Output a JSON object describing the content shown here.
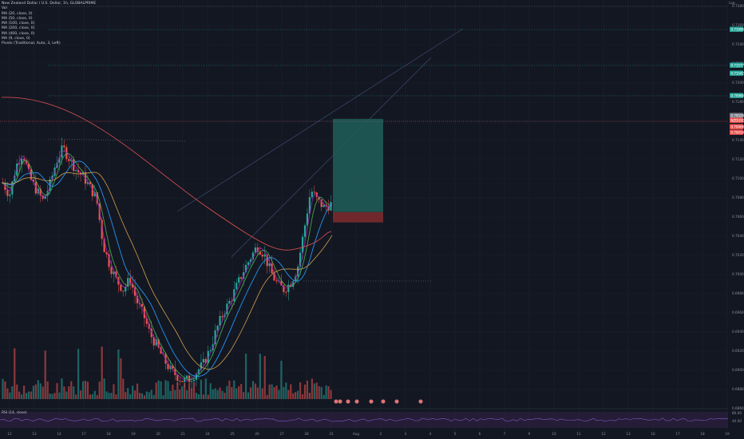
{
  "symbol": {
    "title": "New Zealand Dollar / U.S. Dollar, 1h, GLOBALPRIME",
    "sub": "Vol"
  },
  "indicators": [
    "MA (20, close, 0)",
    "MA (50, close, 0)",
    "MA (100, close, 0)",
    "MA (200, close, 0)",
    "MA (400, close, 0)",
    "MA (9, close, 0)",
    "Pivots (Traditional, Auto, 3, Left)"
  ],
  "rsi_label": "RSI (14, close)",
  "log_toggle": "Log",
  "price_axis": [
    "0.72800",
    "0.72600",
    "0.72400",
    "0.72200",
    "0.72000",
    "0.71800",
    "0.71600",
    "0.71400",
    "0.71200",
    "0.71000",
    "0.70800",
    "0.70600",
    "0.70400",
    "0.70200",
    "0.70000",
    "0.69800",
    "0.69600",
    "0.69400",
    "0.69200",
    "0.69000",
    "0.68800",
    "0.68600"
  ],
  "price_tags": [
    {
      "text": "0.71990",
      "color": "#26a69a"
    },
    {
      "text": "0.71577",
      "color": "#26a69a"
    },
    {
      "text": "0.71542",
      "color": "#26a69a"
    },
    {
      "text": "0.70960",
      "color": "#26a69a"
    },
    {
      "text": "0.70529",
      "color": "#787b86"
    },
    {
      "text": "NZDUSD",
      "color": "#ef5350"
    },
    {
      "text": "0.70468",
      "color": "#ef5350"
    },
    {
      "text": "0.70414",
      "color": "#ef5350"
    }
  ],
  "rsi_axis": [
    "80.00",
    "40.00"
  ],
  "time_axis": [
    "12",
    "13",
    "14",
    "17",
    "18",
    "19",
    "20",
    "21",
    "24",
    "25",
    "26",
    "27",
    "28",
    "31",
    "Aug",
    "2",
    "3",
    "4",
    "5",
    "6",
    "7",
    "9",
    "10",
    "11",
    "12",
    "13",
    "16",
    "17",
    "18",
    "19"
  ],
  "colors": {
    "bg": "#131722",
    "up": "#26a69a",
    "down": "#ef5350",
    "ma_blue": "#2196f3",
    "ma_orange": "#d1a04a",
    "ma_green": "#4caf50",
    "ma_red": "#e05050",
    "position_profit": "#1f5a56",
    "position_loss": "#7a2a2e",
    "rsi_band": "#2a1f3d"
  },
  "chart_data": {
    "type": "candlestick",
    "timeframe": "1h",
    "price_range": [
      0.6843,
      0.7284
    ],
    "close_series": [
      0.7086,
      0.7072,
      0.7105,
      0.712,
      0.7092,
      0.7078,
      0.7066,
      0.7083,
      0.711,
      0.7125,
      0.7112,
      0.71,
      0.7093,
      0.7081,
      0.7068,
      0.7016,
      0.6993,
      0.6976,
      0.6966,
      0.6978,
      0.6953,
      0.6938,
      0.6916,
      0.6903,
      0.6888,
      0.6876,
      0.6869,
      0.6863,
      0.6866,
      0.6874,
      0.6883,
      0.69,
      0.6923,
      0.6941,
      0.6954,
      0.6971,
      0.6988,
      0.7002,
      0.7015,
      0.7006,
      0.6986,
      0.6972,
      0.6966,
      0.6974,
      0.699,
      0.7033,
      0.7078,
      0.7066,
      0.7058,
      0.7062
    ],
    "position": {
      "entry": 0.70529,
      "target": 0.71577,
      "stop": 0.70414
    }
  }
}
